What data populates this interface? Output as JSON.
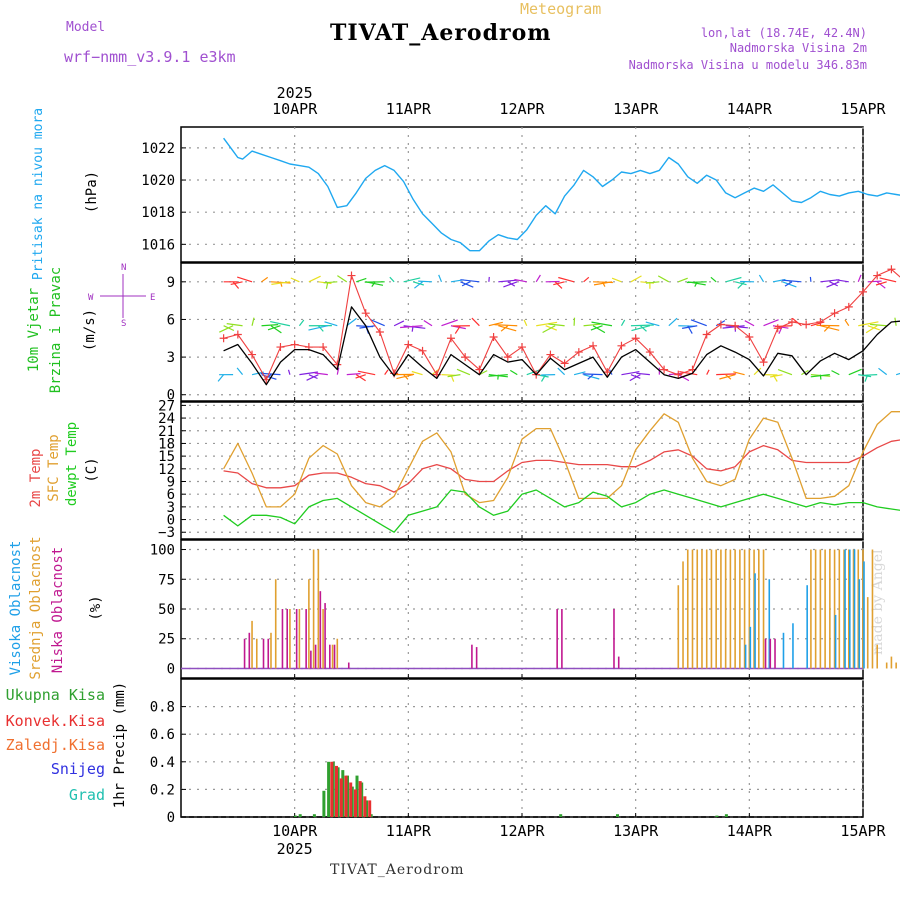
{
  "header": {
    "title": "TIVAT_Aerodrom",
    "meteogram_label": "Meteogram",
    "model_label": "Model",
    "model_name": "wrf−nmm_v3.9.1  e3km",
    "lonlat": "lon,lat (18.74E, 42.4N)",
    "elevation": "Nadmorska Visina 2m",
    "model_elevation": "Nadmorska Visina u modelu 346.83m",
    "footer": "TIVAT_Aerodrom",
    "credit": "made by Angel"
  },
  "colors": {
    "pressure": "#1fa8f0",
    "wind_speed": "#000000",
    "wind_gust": "#f04040",
    "temp2m": "#e84848",
    "sfc_temp": "#e0a030",
    "dewpoint": "#20cc20",
    "high_cloud": "#1fa0e8",
    "mid_cloud": "#e0a030",
    "low_cloud": "#c01890",
    "total_precip": "#30a030",
    "conv_precip": "#e83030",
    "grid": "#999999"
  },
  "time_axis": {
    "year": "2025",
    "days": [
      "10APR",
      "11APR",
      "12APR",
      "13APR",
      "14APR",
      "15APR"
    ]
  },
  "chart_data": [
    {
      "type": "line",
      "name": "pressure",
      "title": "Pritisak na nivou mora",
      "ylabel": "(hPa)",
      "ylim": [
        1014.9,
        1023.3
      ],
      "yticks": [
        1016,
        1018,
        1020,
        1022
      ],
      "x_hours": [
        0,
        2,
        3,
        4,
        6,
        8,
        10,
        12,
        14,
        16,
        18,
        20,
        22,
        24,
        26,
        28,
        30,
        32,
        34,
        36,
        38,
        40,
        42,
        44,
        46,
        48,
        50,
        52,
        54,
        56,
        58,
        60,
        62,
        64,
        66,
        68,
        70,
        72,
        74,
        76,
        78,
        80,
        82,
        84,
        86,
        88,
        90,
        92,
        94,
        96,
        98,
        100,
        102,
        104,
        106,
        108,
        110,
        112,
        114,
        116,
        118,
        120,
        122,
        124,
        126,
        128,
        130,
        132,
        134,
        136,
        138,
        140,
        142,
        144
      ],
      "values": [
        1022.6,
        1021.8,
        1021.4,
        1021.3,
        1021.8,
        1021.6,
        1021.4,
        1021.2,
        1021.0,
        1020.9,
        1020.8,
        1020.4,
        1019.6,
        1018.3,
        1018.4,
        1019.2,
        1020.1,
        1020.6,
        1020.9,
        1020.6,
        1019.9,
        1018.8,
        1017.9,
        1017.3,
        1016.7,
        1016.3,
        1016.1,
        1015.6,
        1015.6,
        1016.2,
        1016.6,
        1016.4,
        1016.3,
        1016.9,
        1017.8,
        1018.4,
        1017.9,
        1019.0,
        1019.7,
        1020.6,
        1020.2,
        1019.6,
        1020.0,
        1020.5,
        1020.4,
        1020.6,
        1020.4,
        1020.6,
        1021.4,
        1021.0,
        1020.2,
        1019.8,
        1020.3,
        1020.0,
        1019.2,
        1018.9,
        1019.2,
        1019.5,
        1019.3,
        1019.7,
        1019.2,
        1018.7,
        1018.6,
        1018.9,
        1019.3,
        1019.1,
        1019.0,
        1019.2,
        1019.3,
        1019.1,
        1019.0,
        1019.2,
        1019.1,
        1019.0
      ]
    },
    {
      "type": "line",
      "name": "wind",
      "title": "10m Vjetar Brzina i Pravac",
      "ylabel": "(m/s)",
      "direction_legend": "N S E W",
      "ylim": [
        -0.5,
        10.5
      ],
      "yticks": [
        0,
        3,
        6,
        9
      ],
      "x_hours": [
        0,
        3,
        6,
        9,
        12,
        15,
        18,
        21,
        24,
        27,
        30,
        33,
        36,
        39,
        42,
        45,
        48,
        51,
        54,
        57,
        60,
        63,
        66,
        69,
        72,
        75,
        78,
        81,
        84,
        87,
        90,
        93,
        96,
        99,
        102,
        105,
        108,
        111,
        114,
        117,
        120,
        123,
        126,
        129,
        132,
        135,
        138,
        141,
        144
      ],
      "series": [
        {
          "name": "speed",
          "values": [
            3.5,
            4.0,
            2.5,
            0.8,
            2.6,
            3.6,
            3.6,
            3.2,
            2.0,
            7.0,
            5.5,
            3.0,
            1.5,
            3.2,
            2.2,
            1.3,
            3.2,
            2.4,
            1.6,
            3.2,
            2.6,
            2.8,
            1.6,
            2.9,
            2.0,
            2.5,
            3.0,
            1.4,
            3.0,
            3.6,
            2.6,
            1.6,
            1.3,
            1.7,
            3.2,
            3.9,
            3.4,
            2.8,
            1.5,
            3.3,
            3.1,
            1.6,
            2.7,
            3.3,
            2.8,
            3.5,
            4.8,
            5.8,
            5.9
          ]
        },
        {
          "name": "gust",
          "values": [
            4.5,
            4.8,
            3.2,
            1.2,
            3.8,
            4.0,
            3.8,
            3.8,
            2.4,
            9.5,
            6.5,
            5.0,
            1.7,
            4.0,
            3.5,
            1.6,
            4.5,
            3.0,
            2.0,
            4.6,
            3.0,
            3.8,
            1.6,
            3.2,
            2.5,
            3.4,
            3.9,
            1.8,
            3.9,
            4.5,
            3.4,
            2.0,
            1.6,
            2.0,
            4.8,
            5.6,
            5.5,
            4.6,
            2.6,
            5.3,
            5.8,
            5.6,
            5.8,
            6.5,
            7.0,
            8.2,
            9.5,
            10.0,
            9.0
          ]
        }
      ]
    },
    {
      "type": "line",
      "name": "temperature",
      "ylabel": "(C)",
      "ylim": [
        -4.6,
        27.8
      ],
      "yticks": [
        -3,
        0,
        3,
        6,
        9,
        12,
        15,
        18,
        21,
        24,
        27
      ],
      "x_hours": [
        0,
        3,
        6,
        9,
        12,
        15,
        18,
        21,
        24,
        27,
        30,
        33,
        36,
        39,
        42,
        45,
        48,
        51,
        54,
        57,
        60,
        63,
        66,
        69,
        72,
        75,
        78,
        81,
        84,
        87,
        90,
        93,
        96,
        99,
        102,
        105,
        108,
        111,
        114,
        117,
        120,
        123,
        126,
        129,
        132,
        135,
        138,
        141,
        144
      ],
      "series": [
        {
          "name": "2m Temp",
          "values": [
            11.5,
            11.0,
            8.5,
            7.5,
            7.5,
            8.0,
            10.5,
            11.0,
            11.0,
            10.0,
            8.5,
            8.0,
            6.5,
            8.5,
            12.0,
            13.0,
            12.0,
            9.5,
            9.0,
            9.0,
            11.5,
            13.5,
            14.0,
            14.0,
            13.5,
            13.0,
            13.0,
            13.0,
            12.5,
            12.5,
            14.0,
            16.0,
            16.5,
            15.0,
            12.0,
            11.5,
            12.5,
            16.0,
            17.5,
            16.5,
            14.0,
            13.5,
            13.5,
            13.5,
            13.5,
            15.0,
            17.0,
            18.5,
            19.0
          ]
        },
        {
          "name": "SFC Temp",
          "values": [
            12.0,
            18.0,
            11.0,
            3.0,
            3.0,
            6.0,
            14.5,
            17.5,
            15.5,
            8.0,
            4.0,
            3.0,
            5.5,
            12.0,
            18.5,
            20.5,
            16.0,
            6.0,
            4.0,
            4.5,
            10.0,
            19.0,
            21.5,
            21.5,
            14.0,
            5.0,
            5.0,
            5.0,
            8.0,
            16.5,
            21.0,
            25.0,
            23.0,
            14.5,
            9.0,
            8.0,
            9.5,
            19.0,
            24.0,
            23.0,
            14.5,
            5.0,
            5.0,
            5.5,
            8.0,
            16.0,
            22.5,
            25.5,
            25.5
          ]
        },
        {
          "name": "dewpt Temp",
          "values": [
            1.0,
            -1.5,
            1.0,
            1.0,
            0.5,
            -1.0,
            3.0,
            4.5,
            5.0,
            3.0,
            1.0,
            -1.0,
            -3.0,
            1.0,
            2.0,
            3.0,
            7.0,
            6.5,
            3.0,
            1.0,
            2.0,
            6.0,
            7.0,
            5.0,
            3.0,
            4.0,
            6.5,
            5.5,
            3.0,
            4.0,
            6.0,
            7.0,
            6.0,
            5.0,
            4.0,
            3.0,
            4.0,
            5.0,
            6.0,
            5.0,
            4.0,
            3.0,
            4.0,
            3.5,
            4.0,
            4.0,
            3.0,
            2.5,
            2.0
          ]
        }
      ]
    },
    {
      "type": "bar",
      "name": "cloud",
      "ylabel": "(%)",
      "ylim": [
        -8,
        108
      ],
      "yticks": [
        0,
        25,
        50,
        75,
        100
      ],
      "series": [
        {
          "name": "Visoka Oblacnost",
          "bars": [
            [
              110,
              20
            ],
            [
              111,
              35
            ],
            [
              112,
              80
            ],
            [
              115,
              75
            ],
            [
              118,
              30
            ],
            [
              120,
              38
            ],
            [
              123,
              70
            ],
            [
              129,
              45
            ],
            [
              131,
              100
            ],
            [
              132,
              100
            ],
            [
              133,
              100
            ],
            [
              134,
              75
            ],
            [
              135,
              90
            ]
          ]
        },
        {
          "name": "Srednja Oblacnost",
          "bars": [
            [
              6,
              40
            ],
            [
              7,
              25
            ],
            [
              10,
              30
            ],
            [
              11,
              75
            ],
            [
              14,
              50
            ],
            [
              16,
              50
            ],
            [
              18,
              75
            ],
            [
              19,
              100
            ],
            [
              20,
              100
            ],
            [
              21,
              50
            ],
            [
              23,
              20
            ],
            [
              24,
              25
            ],
            [
              96,
              70
            ],
            [
              97,
              90
            ],
            [
              98,
              100
            ],
            [
              99,
              100
            ],
            [
              100,
              100
            ],
            [
              101,
              100
            ],
            [
              102,
              100
            ],
            [
              103,
              100
            ],
            [
              104,
              100
            ],
            [
              105,
              100
            ],
            [
              106,
              100
            ],
            [
              107,
              100
            ],
            [
              108,
              100
            ],
            [
              109,
              100
            ],
            [
              110,
              100
            ],
            [
              111,
              100
            ],
            [
              112,
              100
            ],
            [
              113,
              100
            ],
            [
              114,
              100
            ],
            [
              124,
              100
            ],
            [
              125,
              100
            ],
            [
              126,
              100
            ],
            [
              127,
              100
            ],
            [
              128,
              100
            ],
            [
              129,
              100
            ],
            [
              130,
              100
            ],
            [
              131,
              100
            ],
            [
              132,
              100
            ],
            [
              133,
              100
            ],
            [
              134,
              100
            ],
            [
              135,
              100
            ],
            [
              136,
              60
            ],
            [
              137,
              100
            ],
            [
              138,
              20
            ],
            [
              139,
              0
            ],
            [
              140,
              5
            ],
            [
              141,
              10
            ],
            [
              142,
              5
            ],
            [
              143,
              10
            ]
          ]
        },
        {
          "name": "Niska Oblacnost",
          "bars": [
            [
              4,
              25
            ],
            [
              5,
              30
            ],
            [
              8,
              25
            ],
            [
              9,
              25
            ],
            [
              12,
              50
            ],
            [
              13,
              50
            ],
            [
              15,
              50
            ],
            [
              17,
              50
            ],
            [
              18,
              15
            ],
            [
              19,
              20
            ],
            [
              20,
              65
            ],
            [
              21,
              55
            ],
            [
              22,
              20
            ],
            [
              23,
              20
            ],
            [
              26,
              5
            ],
            [
              52,
              20
            ],
            [
              53,
              18
            ],
            [
              70,
              50
            ],
            [
              71,
              50
            ],
            [
              82,
              50
            ],
            [
              83,
              10
            ],
            [
              114,
              25
            ],
            [
              115,
              25
            ],
            [
              116,
              25
            ]
          ]
        }
      ]
    },
    {
      "type": "bar",
      "name": "precipitation",
      "ylabel": "1hr Precip (mm)",
      "ylim": [
        0,
        1
      ],
      "yticks": [
        0,
        0.2,
        0.4,
        0.6,
        0.8
      ],
      "legend": [
        "Ukupna Kisa",
        "Konvek.Kisa",
        "Zaledj.Kisa",
        "Snijeg",
        "Grad"
      ],
      "series": [
        {
          "name": "Ukupna Kisa",
          "bars": [
            [
              15.5,
              0.01
            ],
            [
              16.5,
              0.02
            ],
            [
              19.5,
              0.02
            ],
            [
              21.5,
              0.19
            ],
            [
              22.5,
              0.4
            ],
            [
              23.5,
              0.4
            ],
            [
              24.5,
              0.36
            ],
            [
              25.5,
              0.34
            ],
            [
              26.5,
              0.3
            ],
            [
              27.5,
              0.22
            ],
            [
              28.5,
              0.3
            ],
            [
              29.5,
              0.25
            ],
            [
              30.5,
              0.12
            ],
            [
              31.5,
              0.02
            ],
            [
              71.5,
              0.02
            ],
            [
              83.5,
              0.02
            ],
            [
              104.5,
              0.01
            ],
            [
              106.5,
              0.02
            ]
          ]
        },
        {
          "name": "Konvek.Kisa",
          "bars": [
            [
              22.5,
              0.4
            ],
            [
              23.5,
              0.37
            ],
            [
              24.5,
              0.28
            ],
            [
              25.5,
              0.3
            ],
            [
              26.5,
              0.25
            ],
            [
              27.5,
              0.2
            ],
            [
              28.5,
              0.26
            ],
            [
              29.5,
              0.15
            ],
            [
              30.5,
              0.12
            ]
          ]
        }
      ]
    }
  ]
}
